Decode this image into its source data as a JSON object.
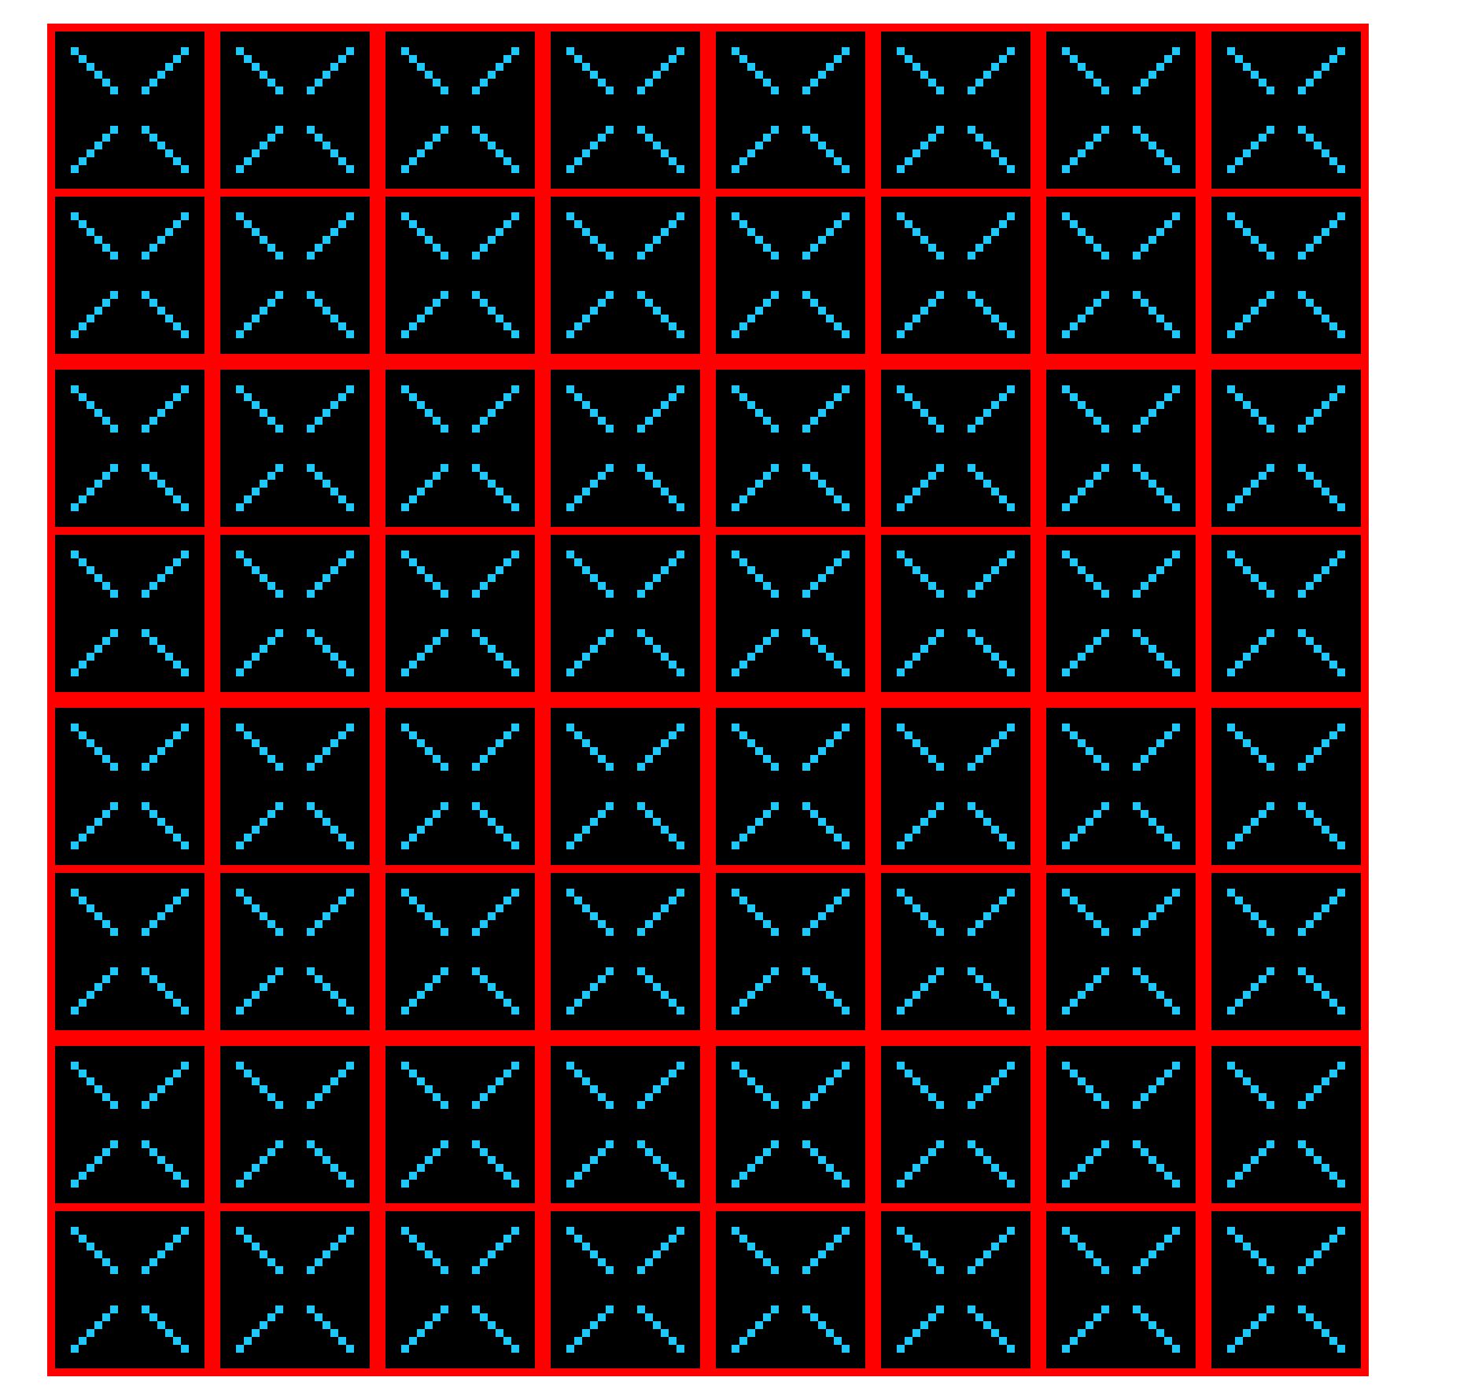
{
  "grid": {
    "rows": 8,
    "cols": 8,
    "tile_pattern": "x-cross-icon",
    "colors": {
      "frame": "#FF0000",
      "tile_background": "#000000",
      "pattern": "#1EC8FA",
      "page_background": "#FFFFFF"
    }
  }
}
